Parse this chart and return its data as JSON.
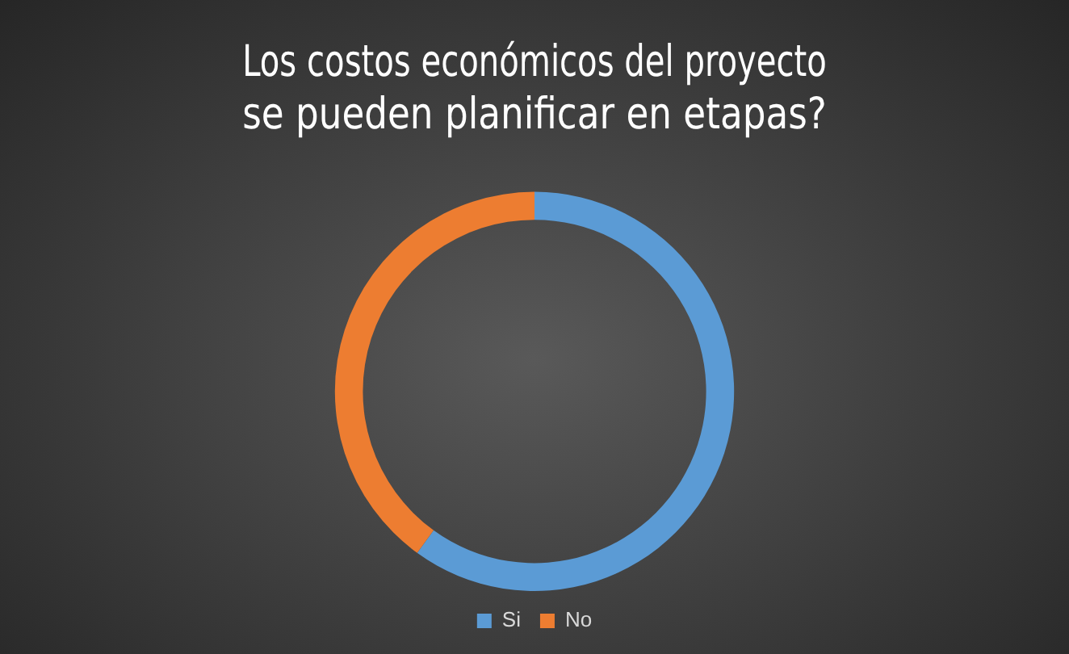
{
  "chart_data": {
    "type": "donut",
    "title": "Los costos económicos del proyecto\nse pueden planificar en etapas?",
    "categories": [
      "Si",
      "No"
    ],
    "values": [
      60,
      40
    ],
    "colors": [
      "#5b9bd5",
      "#ed7d31"
    ],
    "legend": "bottom"
  }
}
